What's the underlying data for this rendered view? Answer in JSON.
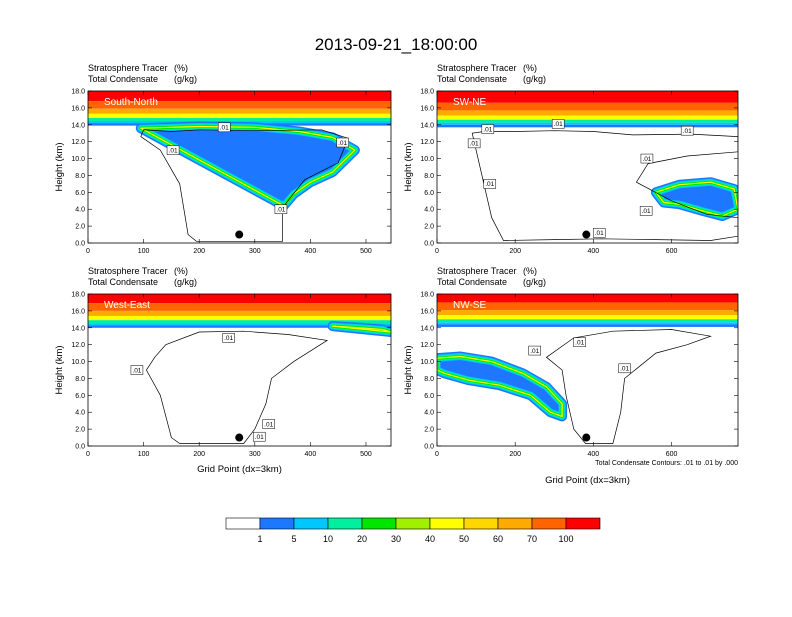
{
  "figure": {
    "title": "2013-09-21_18:00:00",
    "label_tracer": "Stratosphere Tracer",
    "label_tracer_units": "(%)",
    "label_cond": "Total Condensate",
    "label_cond_units": "(g/kg)",
    "contour_note": "Total Condensate Contours: .01 to .01 by .000",
    "xlabel": "Grid Point (dx=3km)",
    "ylabel": "Height (km)"
  },
  "colors": {
    "levels": [
      "#ffffff",
      "#1e78ff",
      "#00c8ff",
      "#00f0a0",
      "#00e600",
      "#a0f000",
      "#ffff00",
      "#ffd700",
      "#ffaa00",
      "#ff6400",
      "#ff0000"
    ],
    "line": "#000000"
  },
  "colorbar": {
    "ticks": [
      "1",
      "5",
      "10",
      "20",
      "30",
      "40",
      "50",
      "60",
      "70",
      "100"
    ]
  },
  "chart_data": [
    {
      "type": "heatmap",
      "panel": "South-North",
      "x_max": 545,
      "xticks": [
        "0",
        "100",
        "200",
        "300",
        "400",
        "500"
      ],
      "yticks": [
        "0.0",
        "2.0",
        "4.0",
        "6.0",
        "8.0",
        "10.0",
        "12.0",
        "14.0",
        "16.0",
        "18.0"
      ],
      "ylim": [
        0,
        18
      ],
      "marker_x": 272,
      "marker_y": 1.0,
      "contour_labels": [
        {
          "x": 245,
          "y": 13.7,
          "text": ".01"
        },
        {
          "x": 153,
          "y": 11.0,
          "text": ".01"
        },
        {
          "x": 458,
          "y": 11.9,
          "text": ".01"
        },
        {
          "x": 347,
          "y": 4.0,
          "text": ".01"
        }
      ],
      "tropopause_km": 14.2,
      "plume": [
        [
          95,
          13.6
        ],
        [
          200,
          13.8
        ],
        [
          300,
          13.7
        ],
        [
          380,
          13.2
        ],
        [
          440,
          12.5
        ],
        [
          480,
          11.0
        ],
        [
          440,
          8.4
        ],
        [
          400,
          7.2
        ],
        [
          370,
          5.8
        ],
        [
          352,
          4.4
        ]
      ],
      "cloud": [
        [
          95,
          12.6
        ],
        [
          130,
          11.0
        ],
        [
          165,
          7.0
        ],
        [
          180,
          1.0
        ],
        [
          195,
          0.2
        ],
        [
          350,
          0.2
        ],
        [
          350,
          4.2
        ],
        [
          390,
          7.5
        ],
        [
          450,
          9.5
        ],
        [
          468,
          12.4
        ],
        [
          420,
          13.4
        ],
        [
          300,
          13.3
        ],
        [
          200,
          13.4
        ],
        [
          150,
          13.2
        ],
        [
          100,
          13.4
        ]
      ]
    },
    {
      "type": "heatmap",
      "panel": "SW-NE",
      "x_max": 770,
      "xticks": [
        "0",
        "200",
        "400",
        "600"
      ],
      "yticks": [
        "0.0",
        "2.0",
        "4.0",
        "6.0",
        "8.0",
        "10.0",
        "12.0",
        "14.0",
        "16.0",
        "18.0"
      ],
      "ylim": [
        0,
        18
      ],
      "marker_x": 382,
      "marker_y": 1.0,
      "contour_labels": [
        {
          "x": 130,
          "y": 13.5,
          "text": ".01"
        },
        {
          "x": 95,
          "y": 11.8,
          "text": ".01"
        },
        {
          "x": 135,
          "y": 7.0,
          "text": ".01"
        },
        {
          "x": 310,
          "y": 14.1,
          "text": ".01"
        },
        {
          "x": 640,
          "y": 13.3,
          "text": ".01"
        },
        {
          "x": 537,
          "y": 10.0,
          "text": ".01"
        },
        {
          "x": 535,
          "y": 3.8,
          "text": ".01"
        },
        {
          "x": 415,
          "y": 1.2,
          "text": ".01"
        }
      ],
      "tropopause_km": 14.0,
      "plume": [
        [
          560,
          6.0
        ],
        [
          620,
          6.9
        ],
        [
          700,
          7.2
        ],
        [
          760,
          6.4
        ],
        [
          770,
          4.0
        ],
        [
          730,
          3.2
        ],
        [
          680,
          3.8
        ],
        [
          620,
          4.6
        ],
        [
          580,
          4.8
        ]
      ],
      "cloud": [
        [
          90,
          13.0
        ],
        [
          110,
          9.0
        ],
        [
          140,
          3.0
        ],
        [
          170,
          0.3
        ],
        [
          300,
          0.4
        ],
        [
          420,
          0.5
        ],
        [
          560,
          0.4
        ],
        [
          700,
          0.3
        ],
        [
          770,
          0.8
        ],
        [
          770,
          3.0
        ],
        [
          690,
          3.4
        ],
        [
          600,
          5.0
        ],
        [
          510,
          7.2
        ],
        [
          540,
          9.4
        ],
        [
          640,
          10.3
        ],
        [
          770,
          10.8
        ],
        [
          770,
          12.6
        ],
        [
          650,
          12.9
        ],
        [
          500,
          12.8
        ],
        [
          400,
          13.2
        ],
        [
          300,
          13.3
        ],
        [
          200,
          13.2
        ],
        [
          120,
          13.2
        ]
      ]
    },
    {
      "type": "heatmap",
      "panel": "West-East",
      "x_max": 545,
      "xticks": [
        "0",
        "100",
        "200",
        "300",
        "400",
        "500"
      ],
      "yticks": [
        "0.0",
        "2.0",
        "4.0",
        "6.0",
        "8.0",
        "10.0",
        "12.0",
        "14.0",
        "16.0",
        "18.0"
      ],
      "ylim": [
        0,
        18
      ],
      "marker_x": 272,
      "marker_y": 1.0,
      "contour_labels": [
        {
          "x": 253,
          "y": 12.8,
          "text": ".01"
        },
        {
          "x": 88,
          "y": 9.0,
          "text": ".01"
        },
        {
          "x": 325,
          "y": 2.6,
          "text": ".01"
        },
        {
          "x": 308,
          "y": 1.1,
          "text": ".01"
        }
      ],
      "tropopause_km": 14.3,
      "plume": [
        [
          440,
          14.2
        ],
        [
          490,
          14.0
        ],
        [
          530,
          13.8
        ],
        [
          545,
          13.5
        ]
      ],
      "cloud": [
        [
          120,
          10.5
        ],
        [
          105,
          9.0
        ],
        [
          130,
          6.0
        ],
        [
          150,
          1.0
        ],
        [
          165,
          0.3
        ],
        [
          280,
          0.3
        ],
        [
          300,
          2.0
        ],
        [
          320,
          5.0
        ],
        [
          330,
          8.0
        ],
        [
          370,
          10.0
        ],
        [
          430,
          12.5
        ],
        [
          360,
          13.2
        ],
        [
          280,
          13.6
        ],
        [
          200,
          13.5
        ],
        [
          140,
          12.0
        ]
      ]
    },
    {
      "type": "heatmap",
      "panel": "NW-SE",
      "x_max": 770,
      "xticks": [
        "0",
        "200",
        "400",
        "600"
      ],
      "yticks": [
        "0.0",
        "2.0",
        "4.0",
        "6.0",
        "8.0",
        "10.0",
        "12.0",
        "14.0",
        "16.0",
        "18.0"
      ],
      "ylim": [
        0,
        18
      ],
      "marker_x": 382,
      "marker_y": 1.0,
      "contour_labels": [
        {
          "x": 250,
          "y": 11.3,
          "text": ".01"
        },
        {
          "x": 365,
          "y": 12.3,
          "text": ".01"
        },
        {
          "x": 480,
          "y": 9.2,
          "text": ".01"
        }
      ],
      "tropopause_km": 14.4,
      "plume": [
        [
          0,
          10.4
        ],
        [
          60,
          10.6
        ],
        [
          140,
          10.0
        ],
        [
          220,
          8.6
        ],
        [
          280,
          7.0
        ],
        [
          320,
          5.0
        ],
        [
          320,
          3.5
        ],
        [
          290,
          4.0
        ],
        [
          240,
          6.0
        ],
        [
          160,
          7.2
        ],
        [
          80,
          7.8
        ],
        [
          20,
          8.6
        ],
        [
          0,
          9.0
        ]
      ],
      "cloud": [
        [
          280,
          10.5
        ],
        [
          320,
          9.0
        ],
        [
          330,
          6.0
        ],
        [
          350,
          2.0
        ],
        [
          380,
          0.3
        ],
        [
          450,
          0.3
        ],
        [
          470,
          4.0
        ],
        [
          480,
          8.0
        ],
        [
          560,
          11.0
        ],
        [
          640,
          12.0
        ],
        [
          700,
          13.0
        ],
        [
          600,
          13.8
        ],
        [
          450,
          13.6
        ],
        [
          350,
          12.8
        ]
      ]
    }
  ]
}
